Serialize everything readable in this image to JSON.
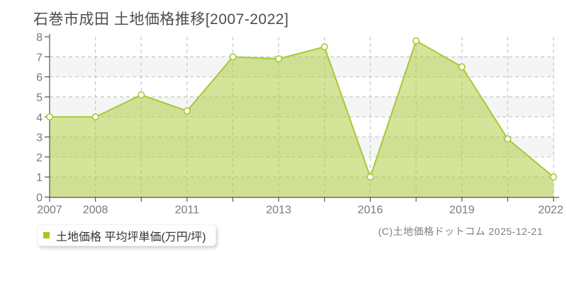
{
  "chart_data": {
    "type": "area",
    "title": "石巻市成田 土地価格推移[2007-2022]",
    "x_labels": [
      "2007",
      "2008",
      "",
      "2011",
      "",
      "2013",
      "",
      "2016",
      "",
      "2019",
      "",
      "2022"
    ],
    "values": [
      4.0,
      4.0,
      5.1,
      4.3,
      7.0,
      6.9,
      7.5,
      1.0,
      7.8,
      6.5,
      2.9,
      1.0
    ],
    "y_ticks": [
      "0",
      "1",
      "2",
      "3",
      "4",
      "5",
      "6",
      "7",
      "8"
    ],
    "ylim": [
      0,
      8
    ],
    "series": [
      {
        "name": "土地価格 平均坪単価(万円/坪)",
        "color": "#a6c933"
      }
    ],
    "grid": "dashed",
    "legend_position": "bottom-left",
    "colors": {
      "line": "#a6c933",
      "fill": "rgba(170,204,51,0.5)",
      "marker_fill": "#ffffff",
      "band_gray": "#f5f5f5",
      "band_white": "#ffffff",
      "gridline": "#cccccc",
      "axis": "#555555",
      "tick_label": "#7a7a7a"
    }
  },
  "legend": {
    "label": "土地価格 平均坪単価(万円/坪)"
  },
  "copyright": "(C)土地価格ドットコム 2025-12-21"
}
